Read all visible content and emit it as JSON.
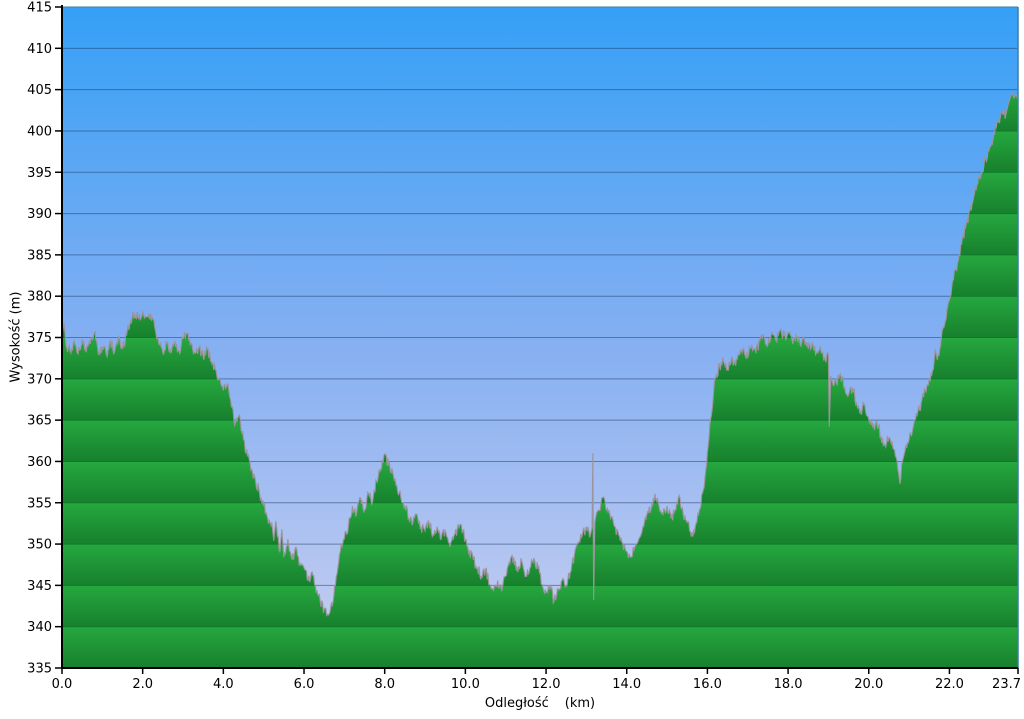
{
  "chart_data": {
    "type": "area",
    "title": "",
    "ylabel": "Wysokość (m)",
    "xlabel": "Odległość",
    "xlabel_unit": "(km)",
    "xlim": [
      0,
      23.7
    ],
    "ylim": [
      335,
      415
    ],
    "grid": "horizontal",
    "grid_interval_m": 5,
    "y_ticks": [
      335,
      340,
      345,
      350,
      355,
      360,
      365,
      370,
      375,
      380,
      385,
      390,
      395,
      400,
      405,
      410,
      415
    ],
    "y_tick_labels": [
      "335",
      "340",
      "345",
      "350",
      "355",
      "360",
      "365",
      "370",
      "375",
      "380",
      "385",
      "390",
      "395",
      "400",
      "405",
      "410",
      "415"
    ],
    "x_ticks": [
      0,
      2,
      4,
      6,
      8,
      10,
      12,
      14,
      16,
      18,
      20,
      22,
      23.7
    ],
    "x_tick_labels": [
      "0.0",
      "2.0",
      "4.0",
      "6.0",
      "8.0",
      "10.0",
      "12.0",
      "14.0",
      "16.0",
      "18.0",
      "20.0",
      "22.0",
      "23.7"
    ],
    "style": {
      "sky_top": "#35A0F6",
      "sky_mid": "#84AFF2",
      "sky_bottom": "#C9CFF0",
      "terrain_band_light": "#26A83F",
      "terrain_band_dark": "#17802D",
      "grid_on_sky": "rgba(25,55,100,0.5)",
      "grid_on_terrain": "#0E7A2B",
      "terrain_outline": "#9B949D",
      "axis_color": "#000000",
      "border_color": "#3E7CA8",
      "noise_amplitude_m": 0.65
    },
    "points": [
      [
        0.0,
        375.2
      ],
      [
        0.05,
        376.8
      ],
      [
        0.1,
        374.0
      ],
      [
        0.2,
        373.4
      ],
      [
        0.3,
        374.6
      ],
      [
        0.4,
        373.0
      ],
      [
        0.5,
        374.8
      ],
      [
        0.6,
        373.2
      ],
      [
        0.7,
        374.2
      ],
      [
        0.8,
        375.6
      ],
      [
        0.9,
        373.0
      ],
      [
        1.0,
        373.9
      ],
      [
        1.1,
        372.9
      ],
      [
        1.2,
        374.6
      ],
      [
        1.3,
        373.2
      ],
      [
        1.4,
        375.0
      ],
      [
        1.5,
        373.6
      ],
      [
        1.6,
        375.2
      ],
      [
        1.7,
        377.0
      ],
      [
        1.8,
        377.9
      ],
      [
        1.9,
        377.3
      ],
      [
        2.0,
        378.1
      ],
      [
        2.1,
        377.5
      ],
      [
        2.2,
        377.9
      ],
      [
        2.3,
        376.2
      ],
      [
        2.4,
        374.2
      ],
      [
        2.5,
        373.1
      ],
      [
        2.6,
        374.3
      ],
      [
        2.7,
        373.1
      ],
      [
        2.8,
        374.6
      ],
      [
        2.9,
        373.4
      ],
      [
        3.0,
        374.9
      ],
      [
        3.1,
        375.5
      ],
      [
        3.2,
        374.3
      ],
      [
        3.3,
        373.1
      ],
      [
        3.4,
        373.9
      ],
      [
        3.5,
        372.6
      ],
      [
        3.6,
        373.6
      ],
      [
        3.7,
        372.1
      ],
      [
        3.8,
        371.1
      ],
      [
        3.9,
        370.1
      ],
      [
        4.0,
        368.6
      ],
      [
        4.1,
        369.4
      ],
      [
        4.2,
        366.6
      ],
      [
        4.3,
        364.6
      ],
      [
        4.4,
        365.6
      ],
      [
        4.5,
        362.6
      ],
      [
        4.6,
        360.6
      ],
      [
        4.7,
        359.1
      ],
      [
        4.8,
        357.6
      ],
      [
        4.9,
        356.1
      ],
      [
        5.0,
        354.6
      ],
      [
        5.1,
        353.1
      ],
      [
        5.2,
        352.6
      ],
      [
        5.25,
        350.4
      ],
      [
        5.3,
        352.8
      ],
      [
        5.4,
        349.0
      ],
      [
        5.45,
        351.8
      ],
      [
        5.5,
        348.4
      ],
      [
        5.6,
        350.6
      ],
      [
        5.7,
        348.1
      ],
      [
        5.8,
        349.6
      ],
      [
        5.9,
        347.6
      ],
      [
        6.0,
        347.1
      ],
      [
        6.1,
        345.6
      ],
      [
        6.2,
        346.6
      ],
      [
        6.3,
        344.1
      ],
      [
        6.4,
        343.1
      ],
      [
        6.5,
        342.1
      ],
      [
        6.6,
        341.4
      ],
      [
        6.7,
        342.6
      ],
      [
        6.8,
        346.1
      ],
      [
        6.9,
        349.1
      ],
      [
        7.0,
        350.6
      ],
      [
        7.1,
        352.1
      ],
      [
        7.2,
        354.6
      ],
      [
        7.3,
        353.6
      ],
      [
        7.4,
        355.6
      ],
      [
        7.5,
        354.1
      ],
      [
        7.6,
        356.1
      ],
      [
        7.7,
        355.1
      ],
      [
        7.8,
        357.6
      ],
      [
        7.9,
        359.1
      ],
      [
        8.0,
        360.9
      ],
      [
        8.1,
        359.6
      ],
      [
        8.2,
        358.6
      ],
      [
        8.3,
        357.1
      ],
      [
        8.4,
        355.6
      ],
      [
        8.5,
        354.6
      ],
      [
        8.6,
        353.1
      ],
      [
        8.7,
        352.6
      ],
      [
        8.8,
        353.6
      ],
      [
        8.9,
        352.1
      ],
      [
        9.0,
        351.6
      ],
      [
        9.1,
        352.6
      ],
      [
        9.2,
        351.1
      ],
      [
        9.3,
        352.1
      ],
      [
        9.4,
        350.6
      ],
      [
        9.5,
        351.6
      ],
      [
        9.6,
        350.1
      ],
      [
        9.7,
        350.6
      ],
      [
        9.8,
        351.9
      ],
      [
        9.9,
        352.3
      ],
      [
        10.0,
        350.6
      ],
      [
        10.1,
        349.1
      ],
      [
        10.2,
        348.1
      ],
      [
        10.3,
        347.1
      ],
      [
        10.4,
        346.1
      ],
      [
        10.5,
        346.9
      ],
      [
        10.6,
        345.1
      ],
      [
        10.7,
        344.4
      ],
      [
        10.8,
        345.6
      ],
      [
        10.9,
        344.3
      ],
      [
        11.0,
        346.1
      ],
      [
        11.1,
        347.6
      ],
      [
        11.2,
        348.4
      ],
      [
        11.3,
        346.6
      ],
      [
        11.4,
        347.9
      ],
      [
        11.5,
        346.1
      ],
      [
        11.6,
        347.1
      ],
      [
        11.7,
        348.3
      ],
      [
        11.8,
        347.1
      ],
      [
        11.9,
        345.1
      ],
      [
        12.0,
        344.1
      ],
      [
        12.1,
        344.9
      ],
      [
        12.2,
        343.1
      ],
      [
        12.3,
        344.6
      ],
      [
        12.4,
        345.6
      ],
      [
        12.5,
        344.9
      ],
      [
        12.6,
        346.6
      ],
      [
        12.7,
        348.6
      ],
      [
        12.8,
        350.1
      ],
      [
        12.9,
        351.1
      ],
      [
        13.0,
        352.1
      ],
      [
        13.1,
        351.1
      ],
      [
        13.14,
        352.0
      ],
      [
        13.16,
        361.0
      ],
      [
        13.18,
        343.2
      ],
      [
        13.21,
        352.6
      ],
      [
        13.3,
        354.1
      ],
      [
        13.4,
        355.6
      ],
      [
        13.5,
        354.1
      ],
      [
        13.6,
        353.1
      ],
      [
        13.7,
        352.1
      ],
      [
        13.8,
        351.1
      ],
      [
        13.9,
        350.1
      ],
      [
        14.0,
        349.1
      ],
      [
        14.1,
        348.4
      ],
      [
        14.2,
        349.6
      ],
      [
        14.3,
        350.6
      ],
      [
        14.4,
        352.1
      ],
      [
        14.5,
        353.6
      ],
      [
        14.6,
        354.1
      ],
      [
        14.7,
        356.1
      ],
      [
        14.8,
        354.6
      ],
      [
        14.9,
        353.6
      ],
      [
        15.0,
        354.6
      ],
      [
        15.1,
        353.1
      ],
      [
        15.2,
        354.1
      ],
      [
        15.3,
        355.9
      ],
      [
        15.4,
        353.6
      ],
      [
        15.5,
        352.6
      ],
      [
        15.6,
        350.9
      ],
      [
        15.7,
        352.1
      ],
      [
        15.8,
        354.1
      ],
      [
        15.9,
        356.6
      ],
      [
        16.0,
        361.1
      ],
      [
        16.1,
        365.6
      ],
      [
        16.2,
        370.1
      ],
      [
        16.3,
        371.6
      ],
      [
        16.4,
        372.1
      ],
      [
        16.5,
        371.1
      ],
      [
        16.6,
        372.6
      ],
      [
        16.7,
        371.6
      ],
      [
        16.8,
        372.9
      ],
      [
        16.9,
        373.6
      ],
      [
        17.0,
        372.6
      ],
      [
        17.1,
        374.1
      ],
      [
        17.2,
        373.1
      ],
      [
        17.3,
        374.6
      ],
      [
        17.4,
        375.1
      ],
      [
        17.5,
        374.1
      ],
      [
        17.6,
        375.6
      ],
      [
        17.7,
        374.6
      ],
      [
        17.8,
        375.9
      ],
      [
        17.9,
        375.1
      ],
      [
        18.0,
        375.6
      ],
      [
        18.1,
        374.6
      ],
      [
        18.2,
        375.3
      ],
      [
        18.3,
        374.1
      ],
      [
        18.4,
        374.9
      ],
      [
        18.5,
        373.6
      ],
      [
        18.6,
        374.4
      ],
      [
        18.7,
        373.1
      ],
      [
        18.8,
        373.9
      ],
      [
        18.9,
        372.6
      ],
      [
        19.0,
        372.9
      ],
      [
        19.02,
        364.2
      ],
      [
        19.06,
        370.3
      ],
      [
        19.1,
        369.6
      ],
      [
        19.2,
        369.4
      ],
      [
        19.3,
        370.6
      ],
      [
        19.4,
        369.1
      ],
      [
        19.5,
        368.1
      ],
      [
        19.6,
        368.9
      ],
      [
        19.7,
        367.1
      ],
      [
        19.8,
        366.1
      ],
      [
        19.9,
        366.9
      ],
      [
        20.0,
        365.1
      ],
      [
        20.1,
        364.1
      ],
      [
        20.2,
        364.9
      ],
      [
        20.3,
        363.1
      ],
      [
        20.4,
        362.1
      ],
      [
        20.5,
        362.9
      ],
      [
        20.6,
        361.6
      ],
      [
        20.7,
        360.1
      ],
      [
        20.77,
        357.3
      ],
      [
        20.84,
        360.1
      ],
      [
        20.9,
        361.3
      ],
      [
        21.0,
        362.6
      ],
      [
        21.1,
        364.1
      ],
      [
        21.2,
        365.6
      ],
      [
        21.3,
        367.1
      ],
      [
        21.4,
        368.6
      ],
      [
        21.5,
        370.1
      ],
      [
        21.6,
        371.1
      ],
      [
        21.65,
        373.6
      ],
      [
        21.7,
        372.3
      ],
      [
        21.8,
        375.0
      ],
      [
        21.9,
        377.0
      ],
      [
        22.0,
        379.5
      ],
      [
        22.1,
        382.0
      ],
      [
        22.2,
        384.0
      ],
      [
        22.3,
        386.3
      ],
      [
        22.4,
        388.3
      ],
      [
        22.5,
        390.3
      ],
      [
        22.6,
        392.0
      ],
      [
        22.7,
        393.6
      ],
      [
        22.8,
        395.1
      ],
      [
        22.9,
        396.6
      ],
      [
        23.0,
        398.1
      ],
      [
        23.1,
        399.6
      ],
      [
        23.2,
        401.1
      ],
      [
        23.3,
        402.3
      ],
      [
        23.4,
        402.0
      ],
      [
        23.45,
        403.1
      ],
      [
        23.5,
        403.9
      ],
      [
        23.55,
        404.6
      ],
      [
        23.6,
        404.0
      ],
      [
        23.65,
        404.4
      ],
      [
        23.7,
        403.8
      ]
    ]
  }
}
